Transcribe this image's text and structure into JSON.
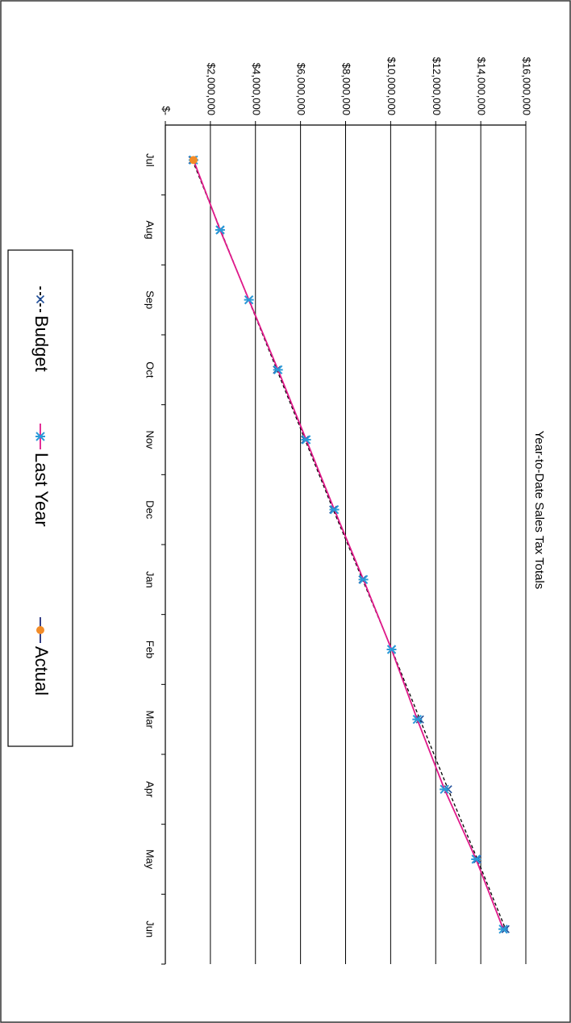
{
  "chart_data": {
    "type": "line",
    "title": "Year-to-Date Sales Tax Totals",
    "categories": [
      "Jul",
      "Aug",
      "Sep",
      "Oct",
      "Nov",
      "Dec",
      "Jan",
      "Feb",
      "Mar",
      "Apr",
      "May",
      "Jun"
    ],
    "series": [
      {
        "name": "Budget",
        "color": "#000000",
        "marker_color": "#1f4e9a",
        "values": [
          1200000,
          2450000,
          3700000,
          4950000,
          6200000,
          7450000,
          8750000,
          10050000,
          11300000,
          12550000,
          13850000,
          15100000
        ]
      },
      {
        "name": "Last Year",
        "color": "#e0198a",
        "marker_color": "#2a9ad8",
        "values": [
          1250000,
          2430000,
          3710000,
          5000000,
          6250000,
          7500000,
          8790000,
          10040000,
          11180000,
          12390000,
          13790000,
          15000000
        ]
      },
      {
        "name": "Actual",
        "color": "#1f2a7a",
        "marker_color": "#f28c28",
        "values": [
          1250000,
          null,
          null,
          null,
          null,
          null,
          null,
          null,
          null,
          null,
          null,
          null
        ]
      }
    ],
    "ylim": [
      0,
      16000000
    ],
    "yticks": [
      {
        "value": 0,
        "label": "$-"
      },
      {
        "value": 2000000,
        "label": "$2,000,000"
      },
      {
        "value": 4000000,
        "label": "$4,000,000"
      },
      {
        "value": 6000000,
        "label": "$6,000,000"
      },
      {
        "value": 8000000,
        "label": "$8,000,000"
      },
      {
        "value": 10000000,
        "label": "$10,000,000"
      },
      {
        "value": 12000000,
        "label": "$12,000,000"
      },
      {
        "value": 14000000,
        "label": "$14,000,000"
      },
      {
        "value": 16000000,
        "label": "$16,000,000"
      }
    ],
    "grid": true,
    "legend": "bottom"
  }
}
